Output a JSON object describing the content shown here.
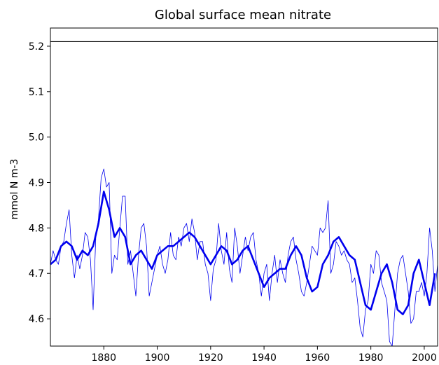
{
  "chart_data": {
    "type": "line",
    "title": "Global surface mean nitrate",
    "xlabel": "",
    "ylabel": "mmol N m-3",
    "xlim": [
      1860,
      2005
    ],
    "ylim": [
      4.54,
      5.24
    ],
    "x_ticks": [
      1880,
      1900,
      1920,
      1940,
      1960,
      1980,
      2000
    ],
    "y_ticks": [
      4.6,
      4.7,
      4.8,
      4.9,
      5.0,
      5.1,
      5.2
    ],
    "grid": false,
    "legend": "none",
    "reference_line": {
      "y": 5.21,
      "color": "#000000"
    },
    "series": [
      {
        "style": "thin",
        "color": "#0000ee",
        "x": [
          1860,
          1861,
          1862,
          1863,
          1864,
          1865,
          1866,
          1867,
          1868,
          1869,
          1870,
          1871,
          1872,
          1873,
          1874,
          1875,
          1876,
          1877,
          1878,
          1879,
          1880,
          1881,
          1882,
          1883,
          1884,
          1885,
          1886,
          1887,
          1888,
          1889,
          1890,
          1891,
          1892,
          1893,
          1894,
          1895,
          1896,
          1897,
          1898,
          1899,
          1900,
          1901,
          1902,
          1903,
          1904,
          1905,
          1906,
          1907,
          1908,
          1909,
          1910,
          1911,
          1912,
          1913,
          1914,
          1915,
          1916,
          1917,
          1918,
          1919,
          1920,
          1921,
          1922,
          1923,
          1924,
          1925,
          1926,
          1927,
          1928,
          1929,
          1930,
          1931,
          1932,
          1933,
          1934,
          1935,
          1936,
          1937,
          1938,
          1939,
          1940,
          1941,
          1942,
          1943,
          1944,
          1945,
          1946,
          1947,
          1948,
          1949,
          1950,
          1951,
          1952,
          1953,
          1954,
          1955,
          1956,
          1957,
          1958,
          1959,
          1960,
          1961,
          1962,
          1963,
          1964,
          1965,
          1966,
          1967,
          1968,
          1969,
          1970,
          1971,
          1972,
          1973,
          1974,
          1975,
          1976,
          1977,
          1978,
          1979,
          1980,
          1981,
          1982,
          1983,
          1984,
          1985,
          1986,
          1987,
          1988,
          1989,
          1990,
          1991,
          1992,
          1993,
          1994,
          1995,
          1996,
          1997,
          1998,
          1999,
          2000,
          2001,
          2002,
          2003,
          2004,
          2005
        ],
        "y": [
          4.72,
          4.75,
          4.73,
          4.72,
          4.76,
          4.77,
          4.81,
          4.84,
          4.74,
          4.69,
          4.74,
          4.71,
          4.74,
          4.79,
          4.78,
          4.73,
          4.62,
          4.78,
          4.82,
          4.91,
          4.93,
          4.89,
          4.9,
          4.7,
          4.74,
          4.73,
          4.8,
          4.87,
          4.87,
          4.72,
          4.75,
          4.7,
          4.65,
          4.74,
          4.8,
          4.81,
          4.76,
          4.65,
          4.68,
          4.71,
          4.74,
          4.76,
          4.72,
          4.7,
          4.73,
          4.79,
          4.74,
          4.73,
          4.78,
          4.76,
          4.8,
          4.81,
          4.77,
          4.82,
          4.79,
          4.73,
          4.77,
          4.77,
          4.72,
          4.7,
          4.64,
          4.71,
          4.73,
          4.81,
          4.75,
          4.72,
          4.79,
          4.71,
          4.68,
          4.8,
          4.76,
          4.7,
          4.74,
          4.78,
          4.75,
          4.78,
          4.79,
          4.73,
          4.7,
          4.65,
          4.7,
          4.72,
          4.64,
          4.7,
          4.74,
          4.68,
          4.73,
          4.7,
          4.68,
          4.74,
          4.77,
          4.78,
          4.73,
          4.7,
          4.66,
          4.65,
          4.68,
          4.72,
          4.76,
          4.75,
          4.74,
          4.8,
          4.79,
          4.8,
          4.86,
          4.7,
          4.72,
          4.77,
          4.76,
          4.74,
          4.75,
          4.73,
          4.72,
          4.68,
          4.69,
          4.64,
          4.58,
          4.56,
          4.62,
          4.64,
          4.72,
          4.7,
          4.75,
          4.74,
          4.68,
          4.66,
          4.64,
          4.55,
          4.54,
          4.62,
          4.7,
          4.73,
          4.74,
          4.7,
          4.66,
          4.59,
          4.6,
          4.66,
          4.66,
          4.68,
          4.65,
          4.7,
          4.8,
          4.75,
          4.66,
          4.72
        ],
        "values_note": ""
      },
      {
        "style": "thick",
        "color": "#0000ee",
        "x": [
          1860,
          1862,
          1864,
          1866,
          1868,
          1870,
          1872,
          1874,
          1876,
          1878,
          1880,
          1882,
          1884,
          1886,
          1888,
          1890,
          1892,
          1894,
          1896,
          1898,
          1900,
          1902,
          1904,
          1906,
          1908,
          1910,
          1912,
          1914,
          1916,
          1918,
          1920,
          1922,
          1924,
          1926,
          1928,
          1930,
          1932,
          1934,
          1936,
          1938,
          1940,
          1942,
          1944,
          1946,
          1948,
          1950,
          1952,
          1954,
          1956,
          1958,
          1960,
          1962,
          1964,
          1966,
          1968,
          1970,
          1972,
          1974,
          1976,
          1978,
          1980,
          1982,
          1984,
          1986,
          1988,
          1990,
          1992,
          1994,
          1996,
          1998,
          2000,
          2002,
          2004
        ],
        "y": [
          4.72,
          4.73,
          4.76,
          4.77,
          4.76,
          4.73,
          4.75,
          4.74,
          4.76,
          4.81,
          4.88,
          4.84,
          4.78,
          4.8,
          4.78,
          4.72,
          4.74,
          4.75,
          4.73,
          4.71,
          4.74,
          4.75,
          4.76,
          4.76,
          4.77,
          4.78,
          4.79,
          4.78,
          4.76,
          4.74,
          4.72,
          4.74,
          4.76,
          4.75,
          4.72,
          4.73,
          4.75,
          4.76,
          4.73,
          4.7,
          4.67,
          4.69,
          4.7,
          4.71,
          4.71,
          4.74,
          4.76,
          4.74,
          4.69,
          4.66,
          4.67,
          4.72,
          4.74,
          4.77,
          4.78,
          4.76,
          4.74,
          4.73,
          4.68,
          4.63,
          4.62,
          4.66,
          4.7,
          4.72,
          4.68,
          4.62,
          4.61,
          4.63,
          4.7,
          4.73,
          4.68,
          4.63,
          4.7
        ]
      }
    ]
  }
}
